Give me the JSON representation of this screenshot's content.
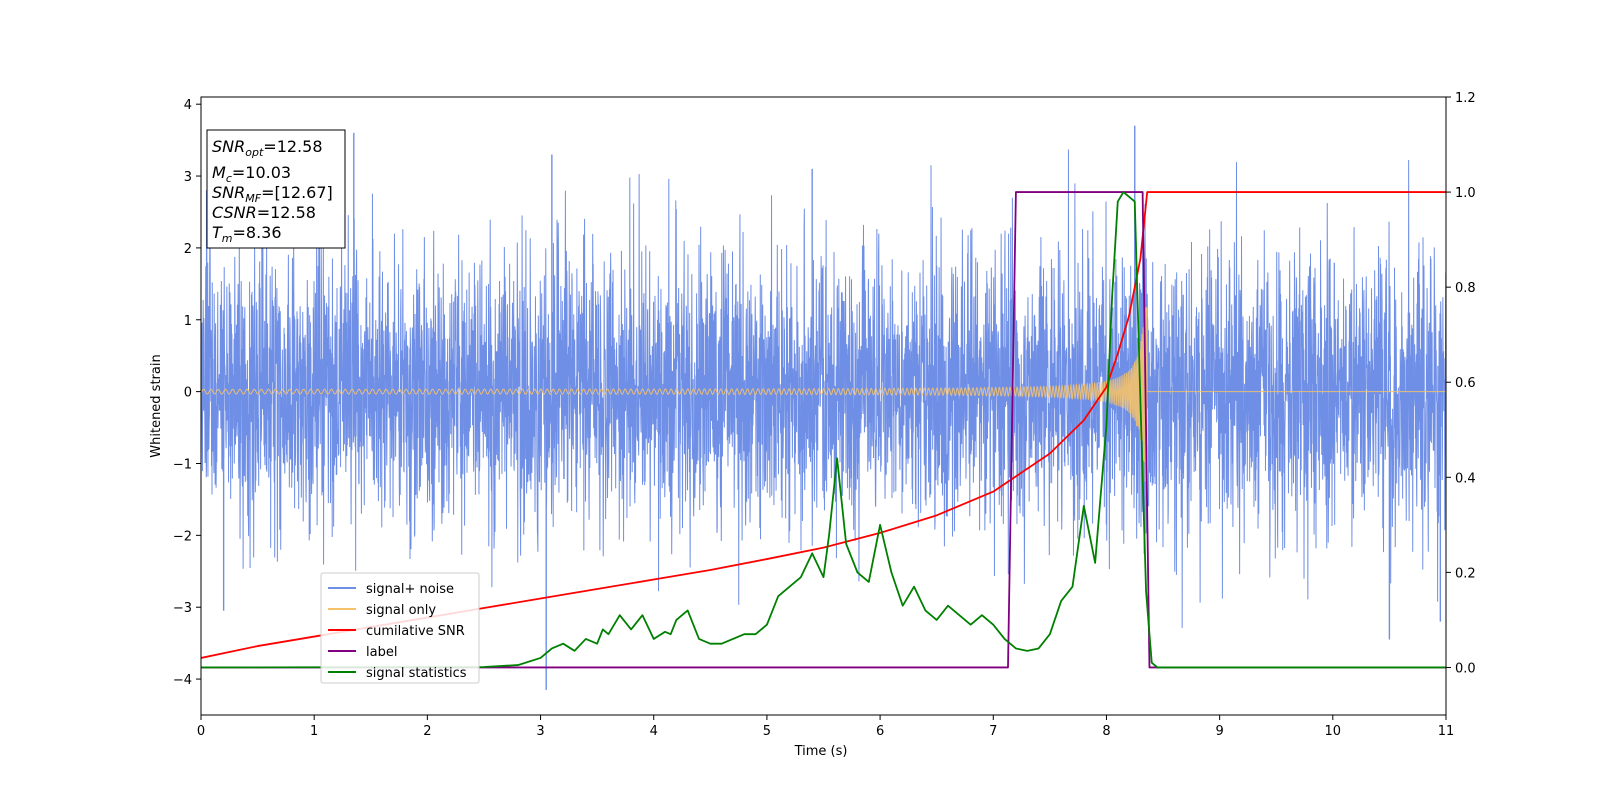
{
  "chart_data": {
    "type": "line",
    "xlabel": "Time (s)",
    "ylabel": "Whitened strain",
    "xlim": [
      0,
      11
    ],
    "ylim_left": [
      -4.5,
      4.1
    ],
    "ylim_right": [
      -0.1,
      1.2
    ],
    "x_ticks": [
      "0",
      "1",
      "2",
      "3",
      "4",
      "5",
      "6",
      "7",
      "8",
      "9",
      "10",
      "11"
    ],
    "y_ticks_left": [
      "4",
      "3",
      "2",
      "1",
      "0",
      "−1",
      "−2",
      "−3",
      "−4"
    ],
    "y_ticks_right": [
      "1.2",
      "1.0",
      "0.8",
      "0.6",
      "0.4",
      "0.2",
      "0.0"
    ],
    "y_tick_values_left": [
      4,
      3,
      2,
      1,
      0,
      -1,
      -2,
      -3,
      -4
    ],
    "y_tick_values_right": [
      1.2,
      1.0,
      0.8,
      0.6,
      0.4,
      0.2,
      0.0
    ],
    "grid": false,
    "legend_position": "lower-left",
    "stats": {
      "snr_opt": "12.58",
      "mc": "10.03",
      "snr_mf": "[12.67]",
      "csnr": "12.58",
      "tm": "8.36"
    },
    "series": [
      {
        "name": "signal+ noise",
        "axis": "left",
        "color": "#6f8fe6",
        "kind": "noise",
        "std": 0.95,
        "range": [
          -4.15,
          3.7
        ],
        "spikes": [
          [
            0.05,
            2.8
          ],
          [
            0.2,
            -3.05
          ],
          [
            1.35,
            3.6
          ],
          [
            3.05,
            -4.15
          ],
          [
            3.1,
            3.3
          ],
          [
            5.4,
            3.1
          ],
          [
            8.25,
            3.7
          ],
          [
            10.5,
            -3.45
          ],
          [
            10.95,
            -3.2
          ]
        ]
      },
      {
        "name": "signal only",
        "axis": "left",
        "color": "#f5c26b",
        "kind": "chirp",
        "end_time": 8.36,
        "peak_amplitude": 1.3
      },
      {
        "name": "cumilative SNR",
        "axis": "right",
        "color": "#ff0000",
        "x": [
          0,
          0.5,
          1,
          1.5,
          2,
          2.5,
          3,
          3.5,
          4,
          4.5,
          5,
          5.5,
          6,
          6.5,
          7,
          7.5,
          7.8,
          8.0,
          8.1,
          8.2,
          8.3,
          8.36,
          8.4,
          11
        ],
        "y": [
          0.02,
          0.045,
          0.065,
          0.085,
          0.105,
          0.125,
          0.145,
          0.165,
          0.185,
          0.205,
          0.228,
          0.252,
          0.283,
          0.32,
          0.37,
          0.45,
          0.52,
          0.59,
          0.66,
          0.74,
          0.86,
          1.0,
          1.0,
          1.0
        ]
      },
      {
        "name": "label",
        "axis": "right",
        "color": "#800080",
        "x": [
          0,
          7.13,
          7.2,
          8.32,
          8.32,
          8.38,
          11
        ],
        "y": [
          0,
          0,
          1.0,
          1.0,
          0.99,
          0,
          0
        ]
      },
      {
        "name": "signal statistics",
        "axis": "right",
        "color": "#008000",
        "x": [
          0,
          2.5,
          2.8,
          3.0,
          3.1,
          3.2,
          3.3,
          3.4,
          3.5,
          3.55,
          3.6,
          3.7,
          3.8,
          3.9,
          4.0,
          4.1,
          4.15,
          4.2,
          4.3,
          4.4,
          4.5,
          4.6,
          4.8,
          4.9,
          5.0,
          5.1,
          5.2,
          5.3,
          5.4,
          5.5,
          5.55,
          5.62,
          5.7,
          5.8,
          5.9,
          6.0,
          6.1,
          6.2,
          6.3,
          6.4,
          6.5,
          6.6,
          6.7,
          6.8,
          6.9,
          7.0,
          7.1,
          7.2,
          7.3,
          7.4,
          7.5,
          7.6,
          7.7,
          7.8,
          7.9,
          8.0,
          8.05,
          8.1,
          8.15,
          8.2,
          8.25,
          8.3,
          8.35,
          8.4,
          8.45,
          8.5,
          9.0,
          11
        ],
        "y": [
          0,
          0.001,
          0.005,
          0.02,
          0.04,
          0.05,
          0.035,
          0.06,
          0.05,
          0.08,
          0.07,
          0.11,
          0.08,
          0.11,
          0.06,
          0.075,
          0.07,
          0.1,
          0.12,
          0.06,
          0.05,
          0.05,
          0.07,
          0.07,
          0.09,
          0.15,
          0.17,
          0.19,
          0.24,
          0.19,
          0.28,
          0.44,
          0.26,
          0.2,
          0.18,
          0.3,
          0.2,
          0.13,
          0.17,
          0.12,
          0.1,
          0.13,
          0.11,
          0.09,
          0.11,
          0.09,
          0.06,
          0.04,
          0.035,
          0.04,
          0.07,
          0.14,
          0.17,
          0.34,
          0.22,
          0.51,
          0.78,
          0.98,
          1.0,
          0.99,
          0.98,
          0.56,
          0.16,
          0.01,
          0.0,
          0.0,
          0.0,
          0.0
        ]
      }
    ]
  }
}
